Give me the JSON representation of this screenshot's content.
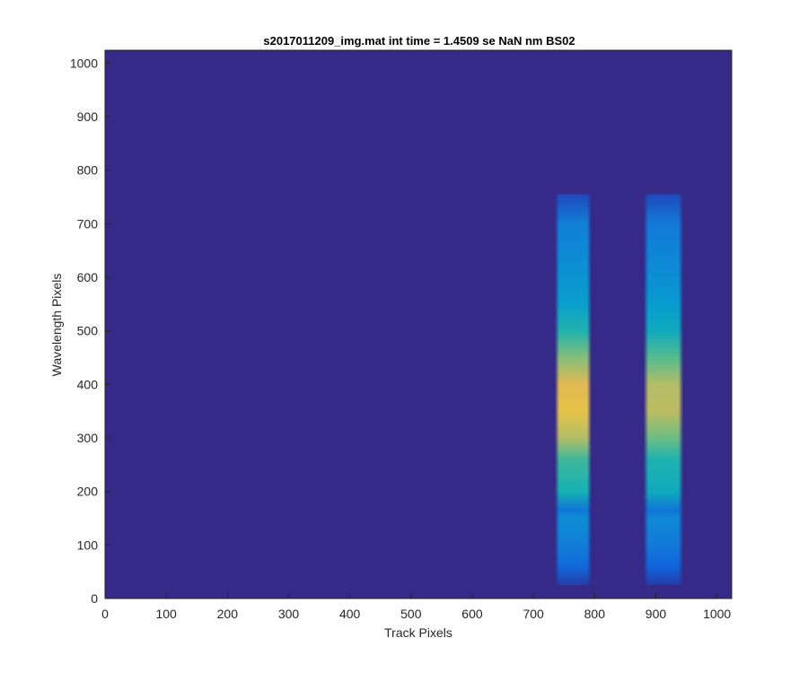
{
  "chart_data": {
    "type": "heatmap",
    "title": "s2017011209_img.mat int time = 1.4509 se  NaN nm BS02",
    "xlabel": "Track Pixels",
    "ylabel": "Wavelength Pixels",
    "xlim": [
      0,
      1024
    ],
    "ylim": [
      0,
      1024
    ],
    "x_ticks": [
      0,
      100,
      200,
      300,
      400,
      500,
      600,
      700,
      800,
      900,
      1000
    ],
    "y_ticks": [
      0,
      100,
      200,
      300,
      400,
      500,
      600,
      700,
      800,
      900,
      1000
    ],
    "x_tick_labels": [
      "0",
      "100",
      "200",
      "300",
      "400",
      "500",
      "600",
      "700",
      "800",
      "900",
      "1000"
    ],
    "y_tick_labels": [
      "0",
      "100",
      "200",
      "300",
      "400",
      "500",
      "600",
      "700",
      "800",
      "900",
      "1000"
    ],
    "colormap": "parula",
    "background_value": 0,
    "grid": false,
    "bands": [
      {
        "x_range": [
          735,
          795
        ],
        "y_range": [
          25,
          755
        ],
        "intensity_profile": [
          {
            "y": 25,
            "value": 0.05
          },
          {
            "y": 60,
            "value": 0.18
          },
          {
            "y": 100,
            "value": 0.25
          },
          {
            "y": 150,
            "value": 0.32
          },
          {
            "y": 165,
            "value": 0.22
          },
          {
            "y": 200,
            "value": 0.5
          },
          {
            "y": 260,
            "value": 0.58
          },
          {
            "y": 300,
            "value": 0.78
          },
          {
            "y": 350,
            "value": 0.9
          },
          {
            "y": 400,
            "value": 0.88
          },
          {
            "y": 450,
            "value": 0.7
          },
          {
            "y": 500,
            "value": 0.52
          },
          {
            "y": 550,
            "value": 0.4
          },
          {
            "y": 600,
            "value": 0.34
          },
          {
            "y": 650,
            "value": 0.3
          },
          {
            "y": 700,
            "value": 0.26
          },
          {
            "y": 755,
            "value": 0.08
          }
        ]
      },
      {
        "x_range": [
          880,
          945
        ],
        "y_range": [
          25,
          755
        ],
        "intensity_profile": [
          {
            "y": 25,
            "value": 0.05
          },
          {
            "y": 60,
            "value": 0.16
          },
          {
            "y": 100,
            "value": 0.24
          },
          {
            "y": 150,
            "value": 0.3
          },
          {
            "y": 165,
            "value": 0.22
          },
          {
            "y": 200,
            "value": 0.46
          },
          {
            "y": 260,
            "value": 0.52
          },
          {
            "y": 300,
            "value": 0.66
          },
          {
            "y": 350,
            "value": 0.8
          },
          {
            "y": 400,
            "value": 0.78
          },
          {
            "y": 450,
            "value": 0.62
          },
          {
            "y": 500,
            "value": 0.46
          },
          {
            "y": 550,
            "value": 0.38
          },
          {
            "y": 600,
            "value": 0.32
          },
          {
            "y": 650,
            "value": 0.28
          },
          {
            "y": 700,
            "value": 0.24
          },
          {
            "y": 755,
            "value": 0.08
          }
        ]
      }
    ]
  }
}
